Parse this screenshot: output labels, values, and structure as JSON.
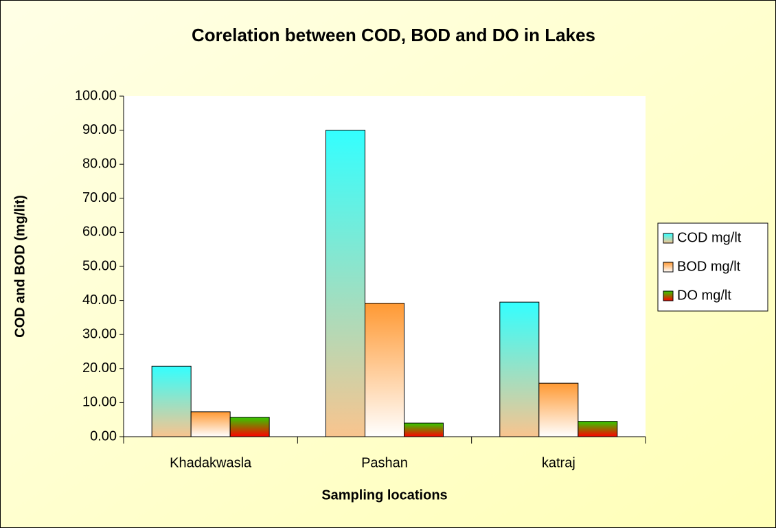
{
  "chart_data": {
    "type": "bar",
    "title": "Corelation between COD, BOD and DO in Lakes",
    "xlabel": "Sampling locations",
    "ylabel": "COD and BOD (mg/lit)",
    "categories": [
      "Khadakwasla",
      "Pashan",
      "katraj"
    ],
    "series": [
      {
        "name": "COD mg/lt",
        "color": [
          "#33ffff",
          "#f9c48e"
        ],
        "values": [
          20.7,
          90.0,
          39.5
        ]
      },
      {
        "name": "BOD mg/lt",
        "color": [
          "#ff9933",
          "#ffffff"
        ],
        "values": [
          7.3,
          39.2,
          15.7
        ]
      },
      {
        "name": "DO mg/lt",
        "color": [
          "#33cc00",
          "#ff0000"
        ],
        "values": [
          5.7,
          4.0,
          4.5
        ]
      }
    ],
    "ylim": [
      0,
      100
    ],
    "yticks": [
      {
        "value": 0,
        "label": "0.00"
      },
      {
        "value": 10,
        "label": "10.00"
      },
      {
        "value": 20,
        "label": "20.00"
      },
      {
        "value": 30,
        "label": "30.00"
      },
      {
        "value": 40,
        "label": "40.00"
      },
      {
        "value": 50,
        "label": "50.00"
      },
      {
        "value": 60,
        "label": "60.00"
      },
      {
        "value": 70,
        "label": "70.00"
      },
      {
        "value": 80,
        "label": "80.00"
      },
      {
        "value": 90,
        "label": "90.00"
      },
      {
        "value": 100,
        "label": "100.00"
      }
    ],
    "legend": "right"
  }
}
